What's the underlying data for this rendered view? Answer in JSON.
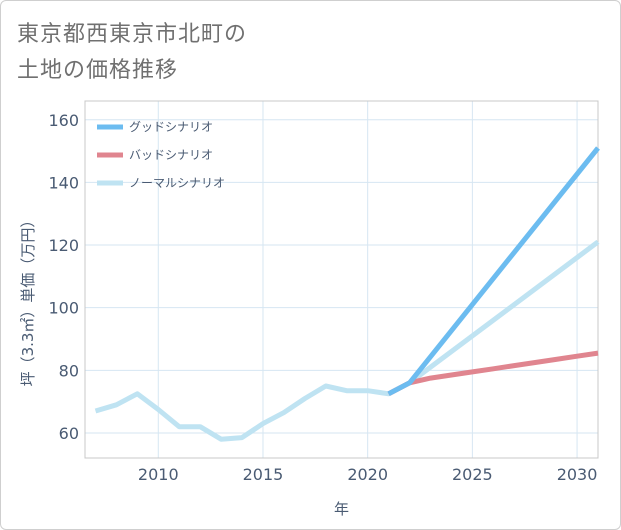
{
  "title": {
    "line1": "東京都西東京市北町の",
    "line2": "土地の価格推移"
  },
  "colors": {
    "good": "#6cbcf0",
    "bad": "#e0858f",
    "normal": "#bfe3f2",
    "grid": "#d6e6f2",
    "axis_text": "#4a5b73"
  },
  "chart_data": {
    "type": "line",
    "title": "東京都西東京市北町の土地の価格推移",
    "xlabel": "年",
    "ylabel": "坪（3.3㎡）単価（万円）",
    "xlim": [
      2006.5,
      2031
    ],
    "ylim": [
      52,
      166
    ],
    "x_ticks": [
      2010,
      2015,
      2020,
      2025,
      2030
    ],
    "y_ticks": [
      60,
      80,
      100,
      120,
      140,
      160
    ],
    "legend_position": "top-left",
    "series": [
      {
        "name": "グッドシナリオ",
        "color_key": "good",
        "x": [
          2021,
          2022,
          2031
        ],
        "values": [
          72.5,
          76,
          151
        ]
      },
      {
        "name": "バッドシナリオ",
        "color_key": "bad",
        "x": [
          2021,
          2022,
          2023,
          2024,
          2025,
          2026,
          2027,
          2028,
          2029,
          2030,
          2031
        ],
        "values": [
          72.5,
          76,
          77.5,
          78.5,
          79.5,
          80.5,
          81.5,
          82.5,
          83.5,
          84.5,
          85.5
        ]
      },
      {
        "name": "ノーマルシナリオ",
        "color_key": "normal",
        "x": [
          2007,
          2008,
          2009,
          2010,
          2011,
          2012,
          2013,
          2014,
          2015,
          2016,
          2017,
          2018,
          2019,
          2020,
          2021,
          2022,
          2031
        ],
        "values": [
          67,
          69,
          72.5,
          67.5,
          62,
          62,
          58,
          58.5,
          63,
          66.5,
          71,
          75,
          73.5,
          73.5,
          72.5,
          76,
          121
        ]
      }
    ]
  }
}
